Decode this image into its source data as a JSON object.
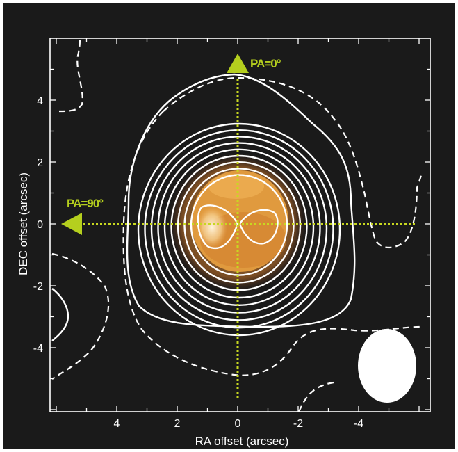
{
  "chart_data": {
    "type": "contour",
    "xlabel": "RA offset (arcsec)",
    "ylabel": "DEC offset (arcsec)",
    "xlim": [
      6.0,
      -6.5
    ],
    "ylim": [
      -6.0,
      6.0
    ],
    "xticks": [
      {
        "value": 4,
        "label": "4"
      },
      {
        "value": 2,
        "label": "2"
      },
      {
        "value": 0,
        "label": "0"
      },
      {
        "value": -2,
        "label": "-2"
      },
      {
        "value": -4,
        "label": "-4"
      }
    ],
    "yticks": [
      {
        "value": 4,
        "label": "4"
      },
      {
        "value": 2,
        "label": "2"
      },
      {
        "value": 0,
        "label": "0"
      },
      {
        "value": -2,
        "label": "-2"
      },
      {
        "value": -4,
        "label": "-4"
      }
    ],
    "annotations": [
      {
        "text": "PA=0°",
        "direction": "north"
      },
      {
        "text": "PA=90°",
        "direction": "east"
      }
    ],
    "positive_contour_count": 10,
    "beam": {
      "ra_center": -4.9,
      "dec_center": -4.7,
      "major": 3.5,
      "minor": 1.9
    },
    "colors": {
      "background": "#1a1a1a",
      "contour": "#ffffff",
      "annotation": "#b5cf1e",
      "emission": "#e8a040"
    }
  }
}
